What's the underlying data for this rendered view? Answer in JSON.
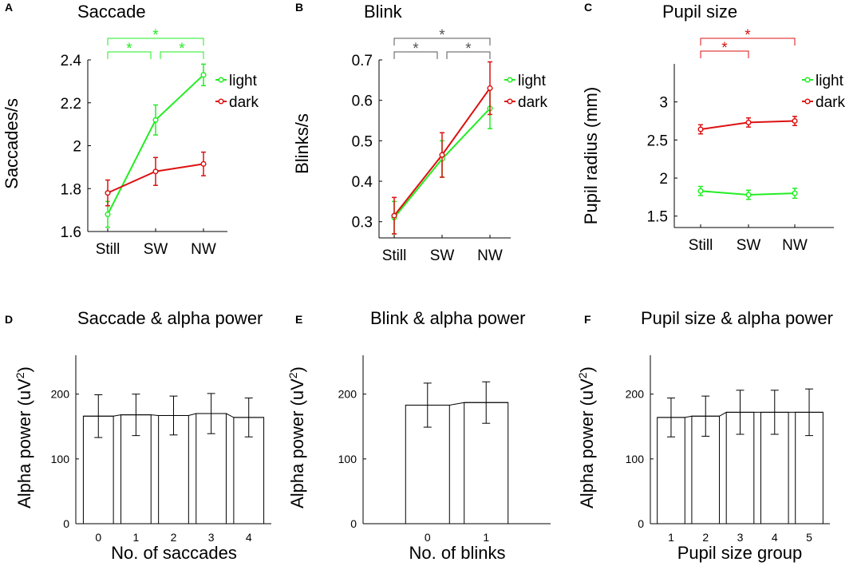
{
  "panels": [
    {
      "letter": "A",
      "title": "Saccade",
      "type": "line",
      "ylabel": "Saccades/s",
      "xlabel": "",
      "ylim": [
        1.6,
        2.4
      ],
      "yticks": [
        1.6,
        1.8,
        2,
        2.2,
        2.4
      ],
      "ytick_labels": [
        "1.6",
        "1.8",
        "2",
        "2.2",
        "2.4"
      ],
      "categories": [
        "Still",
        "SW",
        "NW"
      ],
      "series": [
        {
          "name": "light",
          "color": "#22ee22",
          "values": [
            1.68,
            2.12,
            2.33
          ],
          "errors": [
            0.06,
            0.07,
            0.05
          ]
        },
        {
          "name": "dark",
          "color": "#dd1111",
          "values": [
            1.78,
            1.88,
            1.915
          ],
          "errors": [
            0.06,
            0.065,
            0.055
          ]
        }
      ],
      "significance": [
        {
          "from": 0,
          "to": 2,
          "label": "*",
          "color": "#22ee22"
        },
        {
          "from": 0,
          "to": 1,
          "label": "*",
          "color": "#22ee22"
        },
        {
          "from": 1,
          "to": 2,
          "label": "*",
          "color": "#22ee22"
        }
      ]
    },
    {
      "letter": "B",
      "title": "Blink",
      "type": "line",
      "ylabel": "Blinks/s",
      "xlabel": "",
      "ylim": [
        0.26,
        0.7
      ],
      "yticks": [
        0.3,
        0.4,
        0.5,
        0.6,
        0.7
      ],
      "ytick_labels": [
        "0.3",
        "0.4",
        "0.5",
        "0.6",
        "0.7"
      ],
      "categories": [
        "Still",
        "SW",
        "NW"
      ],
      "series": [
        {
          "name": "light",
          "color": "#22ee22",
          "values": [
            0.31,
            0.455,
            0.58
          ],
          "errors": [
            0.04,
            0.045,
            0.05
          ]
        },
        {
          "name": "dark",
          "color": "#dd1111",
          "values": [
            0.315,
            0.465,
            0.63
          ],
          "errors": [
            0.045,
            0.055,
            0.065
          ]
        }
      ],
      "significance": [
        {
          "from": 0,
          "to": 2,
          "label": "*",
          "color": "#555555"
        },
        {
          "from": 0,
          "to": 1,
          "label": "*",
          "color": "#555555"
        },
        {
          "from": 1,
          "to": 2,
          "label": "*",
          "color": "#555555"
        }
      ]
    },
    {
      "letter": "C",
      "title": "Pupil size",
      "type": "line",
      "ylabel": "Pupil radius (mm)",
      "xlabel": "",
      "ylim": [
        1.35,
        3.5
      ],
      "yticks": [
        1.5,
        2,
        2.5,
        3
      ],
      "ytick_labels": [
        "1.5",
        "2",
        "2.5",
        "3"
      ],
      "categories": [
        "Still",
        "SW",
        "NW"
      ],
      "series": [
        {
          "name": "light",
          "color": "#22ee22",
          "values": [
            1.83,
            1.78,
            1.8
          ],
          "errors": [
            0.06,
            0.06,
            0.065
          ]
        },
        {
          "name": "dark",
          "color": "#dd1111",
          "values": [
            2.64,
            2.73,
            2.75
          ],
          "errors": [
            0.06,
            0.06,
            0.06
          ]
        }
      ],
      "significance": [
        {
          "from": 0,
          "to": 2,
          "label": "*",
          "color": "#dd1111"
        },
        {
          "from": 0,
          "to": 1,
          "label": "*",
          "color": "#dd1111"
        }
      ]
    },
    {
      "letter": "D",
      "title": "Saccade & alpha power",
      "type": "bar",
      "ylabel": "Alpha power (uV",
      "ylabel_sup": "2",
      "ylabel_end": ")",
      "xlabel": "No. of saccades",
      "ylim": [
        0,
        260
      ],
      "yticks": [
        0,
        100,
        200
      ],
      "ytick_labels": [
        "0",
        "100",
        "200"
      ],
      "categories": [
        "0",
        "1",
        "2",
        "3",
        "4"
      ],
      "xpos": [
        0,
        1,
        2,
        3,
        4
      ],
      "xlim": [
        -0.6,
        4.6
      ],
      "values": [
        166,
        168,
        167,
        170,
        164
      ],
      "errors": [
        33,
        32,
        30,
        31,
        30
      ]
    },
    {
      "letter": "E",
      "title": "Blink & alpha power",
      "type": "bar",
      "ylabel": "Alpha power (uV",
      "ylabel_sup": "2",
      "ylabel_end": ")",
      "xlabel": "No. of blinks",
      "ylim": [
        0,
        260
      ],
      "yticks": [
        0,
        100,
        200
      ],
      "ytick_labels": [
        "0",
        "100",
        "200"
      ],
      "categories": [
        "0",
        "1"
      ],
      "xpos": [
        0,
        1
      ],
      "xlim": [
        -1.1,
        2.1
      ],
      "values": [
        183,
        187
      ],
      "errors": [
        34,
        32
      ]
    },
    {
      "letter": "F",
      "title": "Pupil size & alpha power",
      "type": "bar",
      "ylabel": "Alpha power (uV",
      "ylabel_sup": "2",
      "ylabel_end": ")",
      "xlabel": "Pupil size group",
      "ylim": [
        0,
        260
      ],
      "yticks": [
        0,
        100,
        200
      ],
      "ytick_labels": [
        "0",
        "100",
        "200"
      ],
      "categories": [
        "1",
        "2",
        "3",
        "4",
        "5"
      ],
      "xpos": [
        0,
        1,
        2,
        3,
        4
      ],
      "xlim": [
        -0.6,
        4.6
      ],
      "values": [
        164,
        166,
        172,
        172,
        172
      ],
      "errors": [
        30,
        31,
        34,
        34,
        36
      ]
    }
  ],
  "chart_data": [
    {
      "type": "line",
      "title": "Saccade",
      "xlabel": "",
      "ylabel": "Saccades/s",
      "categories": [
        "Still",
        "SW",
        "NW"
      ],
      "ylim": [
        1.6,
        2.4
      ],
      "series": [
        {
          "name": "light",
          "values": [
            1.68,
            2.12,
            2.33
          ]
        },
        {
          "name": "dark",
          "values": [
            1.78,
            1.88,
            1.915
          ]
        }
      ]
    },
    {
      "type": "line",
      "title": "Blink",
      "xlabel": "",
      "ylabel": "Blinks/s",
      "categories": [
        "Still",
        "SW",
        "NW"
      ],
      "ylim": [
        0.26,
        0.7
      ],
      "series": [
        {
          "name": "light",
          "values": [
            0.31,
            0.455,
            0.58
          ]
        },
        {
          "name": "dark",
          "values": [
            0.315,
            0.465,
            0.63
          ]
        }
      ]
    },
    {
      "type": "line",
      "title": "Pupil size",
      "xlabel": "",
      "ylabel": "Pupil radius (mm)",
      "categories": [
        "Still",
        "SW",
        "NW"
      ],
      "ylim": [
        1.35,
        3.5
      ],
      "series": [
        {
          "name": "light",
          "values": [
            1.83,
            1.78,
            1.8
          ]
        },
        {
          "name": "dark",
          "values": [
            2.64,
            2.73,
            2.75
          ]
        }
      ]
    },
    {
      "type": "bar",
      "title": "Saccade & alpha power",
      "xlabel": "No. of saccades",
      "ylabel": "Alpha power (uV2)",
      "categories": [
        "0",
        "1",
        "2",
        "3",
        "4"
      ],
      "values": [
        166,
        168,
        167,
        170,
        164
      ],
      "ylim": [
        0,
        260
      ]
    },
    {
      "type": "bar",
      "title": "Blink & alpha power",
      "xlabel": "No. of blinks",
      "ylabel": "Alpha power (uV2)",
      "categories": [
        "0",
        "1"
      ],
      "values": [
        183,
        187
      ],
      "ylim": [
        0,
        260
      ]
    },
    {
      "type": "bar",
      "title": "Pupil size & alpha power",
      "xlabel": "Pupil size group",
      "ylabel": "Alpha power (uV2)",
      "categories": [
        "1",
        "2",
        "3",
        "4",
        "5"
      ],
      "values": [
        164,
        166,
        172,
        172,
        172
      ],
      "ylim": [
        0,
        260
      ]
    }
  ]
}
